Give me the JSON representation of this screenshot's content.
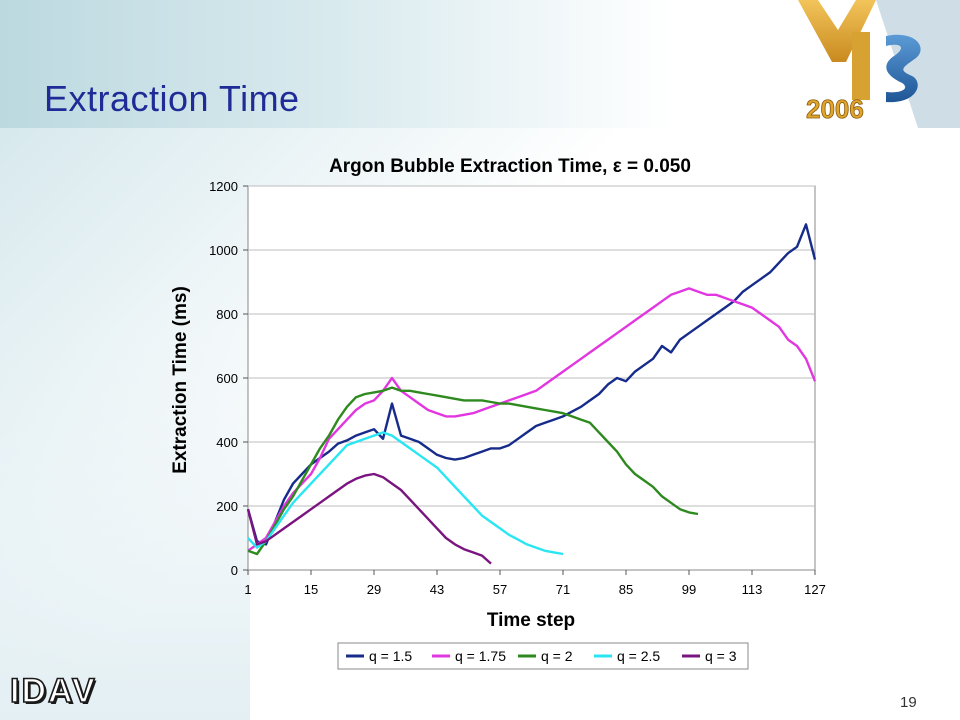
{
  "slide": {
    "title": "Extraction Time",
    "page_number": "19",
    "logo_text": "IDAV",
    "vis_logo": {
      "letters": "VIS",
      "year": "2006",
      "colors": [
        "#d9a43a",
        "#2c6aa8",
        "#9bb6c9"
      ]
    }
  },
  "chart_data": {
    "type": "line",
    "title": "Argon Bubble Extraction Time, ε = 0.050",
    "xlabel": "Time step",
    "ylabel": "Extraction Time (ms)",
    "xlim": [
      1,
      127
    ],
    "ylim": [
      0,
      1200
    ],
    "xticks": [
      1,
      15,
      29,
      43,
      57,
      71,
      85,
      99,
      113,
      127
    ],
    "yticks": [
      0,
      200,
      400,
      600,
      800,
      1000,
      1200
    ],
    "grid": "horizontal",
    "legend_position": "bottom",
    "series": [
      {
        "name": "q = 1.5",
        "color": "#162b8a",
        "x": [
          1,
          3,
          5,
          7,
          9,
          11,
          13,
          15,
          17,
          19,
          21,
          23,
          25,
          27,
          29,
          31,
          33,
          35,
          37,
          39,
          41,
          43,
          45,
          47,
          49,
          51,
          53,
          55,
          57,
          59,
          61,
          63,
          65,
          67,
          69,
          71,
          73,
          75,
          77,
          79,
          81,
          83,
          85,
          87,
          89,
          91,
          93,
          95,
          97,
          99,
          101,
          103,
          105,
          107,
          109,
          111,
          113,
          115,
          117,
          119,
          121,
          123,
          125,
          127
        ],
        "y": [
          190,
          90,
          80,
          150,
          220,
          270,
          300,
          330,
          350,
          370,
          395,
          405,
          420,
          430,
          440,
          410,
          520,
          420,
          410,
          400,
          380,
          360,
          350,
          345,
          350,
          360,
          370,
          380,
          380,
          390,
          410,
          430,
          450,
          460,
          470,
          480,
          495,
          510,
          530,
          550,
          580,
          600,
          590,
          620,
          640,
          660,
          700,
          680,
          720,
          740,
          760,
          780,
          800,
          820,
          840,
          870,
          890,
          910,
          930,
          960,
          990,
          1010,
          1080,
          970
        ]
      },
      {
        "name": "q = 1.75",
        "color": "#e236e0",
        "x": [
          1,
          3,
          5,
          7,
          9,
          11,
          13,
          15,
          17,
          19,
          21,
          23,
          25,
          27,
          29,
          31,
          33,
          35,
          37,
          39,
          41,
          43,
          45,
          47,
          49,
          51,
          53,
          55,
          57,
          59,
          61,
          63,
          65,
          67,
          69,
          71,
          73,
          75,
          77,
          79,
          81,
          83,
          85,
          87,
          89,
          91,
          93,
          95,
          97,
          99,
          101,
          103,
          105,
          107,
          109,
          111,
          113,
          115,
          117,
          119,
          121,
          123,
          125,
          127
        ],
        "y": [
          60,
          80,
          100,
          150,
          200,
          240,
          270,
          300,
          350,
          410,
          440,
          470,
          500,
          520,
          530,
          560,
          600,
          560,
          540,
          520,
          500,
          490,
          480,
          480,
          485,
          490,
          500,
          510,
          520,
          530,
          540,
          550,
          560,
          580,
          600,
          620,
          640,
          660,
          680,
          700,
          720,
          740,
          760,
          780,
          800,
          820,
          840,
          860,
          870,
          880,
          870,
          860,
          860,
          850,
          840,
          830,
          820,
          800,
          780,
          760,
          720,
          700,
          660,
          590
        ]
      },
      {
        "name": "q = 2",
        "color": "#2e8a1f",
        "x": [
          1,
          3,
          5,
          7,
          9,
          11,
          13,
          15,
          17,
          19,
          21,
          23,
          25,
          27,
          29,
          31,
          33,
          35,
          37,
          39,
          41,
          43,
          45,
          47,
          49,
          51,
          53,
          55,
          57,
          59,
          61,
          63,
          65,
          67,
          69,
          71,
          73,
          75,
          77,
          79,
          81,
          83,
          85,
          87,
          89,
          91,
          93,
          95,
          97,
          99,
          101
        ],
        "y": [
          60,
          50,
          90,
          140,
          190,
          230,
          280,
          330,
          380,
          420,
          470,
          510,
          540,
          550,
          555,
          560,
          570,
          560,
          560,
          555,
          550,
          545,
          540,
          535,
          530,
          530,
          530,
          525,
          520,
          520,
          515,
          510,
          505,
          500,
          495,
          490,
          480,
          470,
          460,
          430,
          400,
          370,
          330,
          300,
          280,
          260,
          230,
          210,
          190,
          180,
          175
        ]
      },
      {
        "name": "q = 2.5",
        "color": "#29e6f2",
        "x": [
          1,
          3,
          5,
          7,
          9,
          11,
          13,
          15,
          17,
          19,
          21,
          23,
          25,
          27,
          29,
          31,
          33,
          35,
          37,
          39,
          41,
          43,
          45,
          47,
          49,
          51,
          53,
          55,
          57,
          59,
          61,
          63,
          65,
          67,
          69,
          71
        ],
        "y": [
          100,
          70,
          90,
          130,
          170,
          210,
          240,
          270,
          300,
          330,
          360,
          390,
          400,
          410,
          420,
          430,
          420,
          400,
          380,
          360,
          340,
          320,
          290,
          260,
          230,
          200,
          170,
          150,
          130,
          110,
          95,
          80,
          70,
          60,
          55,
          50
        ]
      },
      {
        "name": "q = 3",
        "color": "#7a1580",
        "x": [
          1,
          3,
          5,
          7,
          9,
          11,
          13,
          15,
          17,
          19,
          21,
          23,
          25,
          27,
          29,
          31,
          33,
          35,
          37,
          39,
          41,
          43,
          45,
          47,
          49,
          51,
          53,
          55
        ],
        "y": [
          190,
          80,
          90,
          110,
          130,
          150,
          170,
          190,
          210,
          230,
          250,
          270,
          285,
          295,
          300,
          290,
          270,
          250,
          220,
          190,
          160,
          130,
          100,
          80,
          65,
          55,
          45,
          20
        ]
      }
    ]
  }
}
